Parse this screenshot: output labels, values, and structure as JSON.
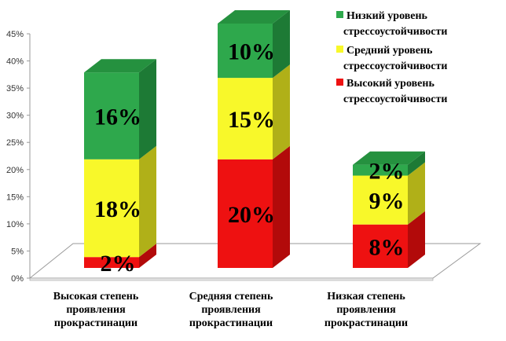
{
  "chart_data": {
    "type": "bar",
    "stacked": true,
    "three_d": true,
    "categories": [
      [
        "Высокая степень",
        "проявления",
        "прокрастинации"
      ],
      [
        "Средняя степень",
        "проявления",
        "прокрастинации"
      ],
      [
        "Низкая степень",
        "проявления",
        "прокрастинации"
      ]
    ],
    "series": [
      {
        "name": "Высокий уровень стрессоустойчивости",
        "legend_lines": [
          "Высокий уровень",
          "стрессоустойчивости"
        ],
        "values": [
          2,
          20,
          8
        ],
        "labels": [
          "2%",
          "20%",
          "8%"
        ],
        "color": "#ee1111",
        "side_color": "#b20a0a",
        "top_color": "#c80c0c"
      },
      {
        "name": "Средний уровень стрессоустойчивости",
        "legend_lines": [
          "Средний уровень",
          "стрессоустойчивости"
        ],
        "values": [
          18,
          15,
          9
        ],
        "labels": [
          "18%",
          "15%",
          "9%"
        ],
        "color": "#f8f82a",
        "side_color": "#b0b018",
        "top_color": "#d8d820"
      },
      {
        "name": "Низкий уровень стрессоустойчивости",
        "legend_lines": [
          "Низкий уровень",
          "стрессоустойчивости"
        ],
        "values": [
          16,
          10,
          2
        ],
        "labels": [
          "16%",
          "10%",
          "2%"
        ],
        "color": "#2ea84c",
        "side_color": "#1d7a35",
        "top_color": "#25913f"
      }
    ],
    "legend_order": [
      2,
      1,
      0
    ],
    "yticks": [
      "0%",
      "5%",
      "10%",
      "15%",
      "20%",
      "25%",
      "30%",
      "35%",
      "40%",
      "45%"
    ],
    "ylim": [
      0,
      45
    ],
    "legend_position": "top-right",
    "grid": false
  }
}
